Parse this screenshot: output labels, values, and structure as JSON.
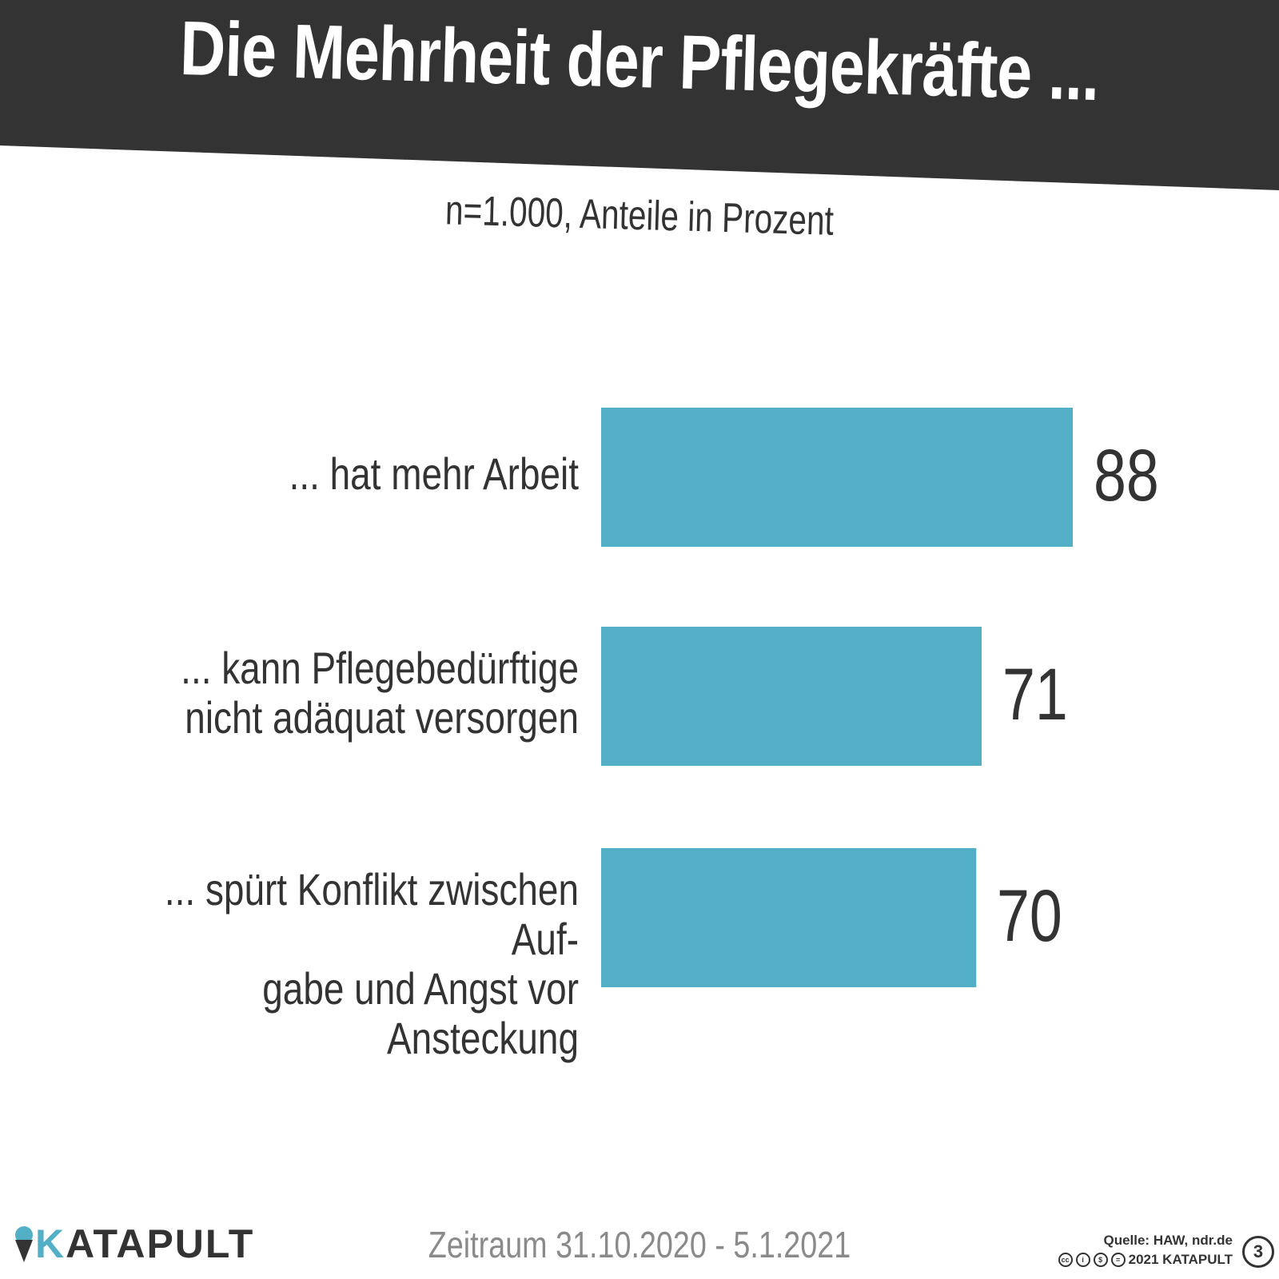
{
  "title": "Die Mehrheit der Pflegekräfte ...",
  "subtitle": "n=1.000, Anteile in Prozent",
  "colors": {
    "banner": "#333333",
    "bar": "#52afc5",
    "text": "#333333",
    "muted": "#8a8a8a"
  },
  "chart_data": {
    "type": "bar",
    "orientation": "horizontal",
    "title": "Die Mehrheit der Pflegekräfte ...",
    "subtitle": "n=1.000, Anteile in Prozent",
    "categories": [
      "... hat mehr Arbeit",
      "... kann Pflegebedürftige\nnicht adäquat versorgen",
      "... spürt Konflikt zwischen Auf-\ngabe und Angst vor Ansteckung"
    ],
    "values": [
      88,
      71,
      70
    ],
    "xlim": [
      0,
      100
    ],
    "grid": false,
    "legend": "none"
  },
  "footer": {
    "logo": "KATAPULT",
    "logo_first": "K",
    "logo_rest": "ATAPULT",
    "period": "Zeitraum 31.10.2020 - 5.1.2021",
    "source": "Quelle: HAW, ndr.de",
    "copyright": "2021 KATAPULT",
    "badge": "3"
  }
}
